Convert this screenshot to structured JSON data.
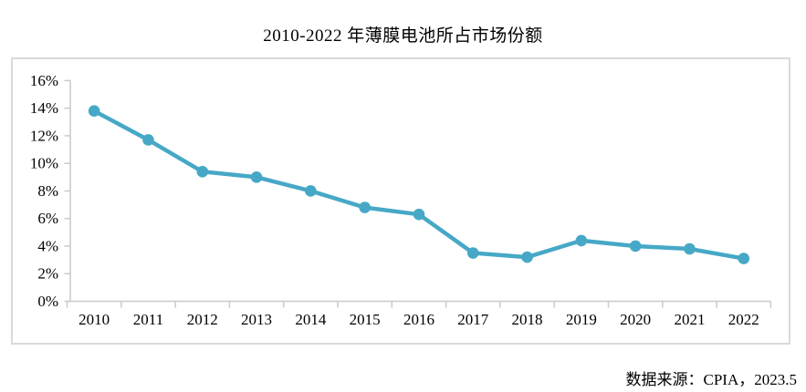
{
  "title": "2010-2022 年薄膜电池所占市场份额",
  "source_note": "数据来源：CPIA，2023.5",
  "colors": {
    "series_line": "#46a8c6",
    "axis_line": "#c9c9c9",
    "frame_border": "#d9d9d9",
    "text": "#000000",
    "background": "#ffffff"
  },
  "chart_data": {
    "type": "line",
    "title": "2010-2022 年薄膜电池所占市场份额",
    "categories": [
      "2010",
      "2011",
      "2012",
      "2013",
      "2014",
      "2015",
      "2016",
      "2017",
      "2018",
      "2019",
      "2020",
      "2021",
      "2022"
    ],
    "values": [
      13.8,
      11.7,
      9.4,
      9.0,
      8.0,
      6.8,
      6.3,
      3.5,
      3.2,
      4.4,
      4.0,
      3.8,
      3.1
    ],
    "unit": "%",
    "xlabel": "",
    "ylabel": "",
    "ylim": [
      0,
      16
    ],
    "y_tick_step": 2,
    "y_tick_labels": [
      "0%",
      "2%",
      "4%",
      "6%",
      "8%",
      "10%",
      "12%",
      "14%",
      "16%"
    ],
    "grid": false,
    "legend": false,
    "marker": "circle",
    "line_color": "#46a8c6",
    "source": "数据来源：CPIA，2023.5"
  }
}
